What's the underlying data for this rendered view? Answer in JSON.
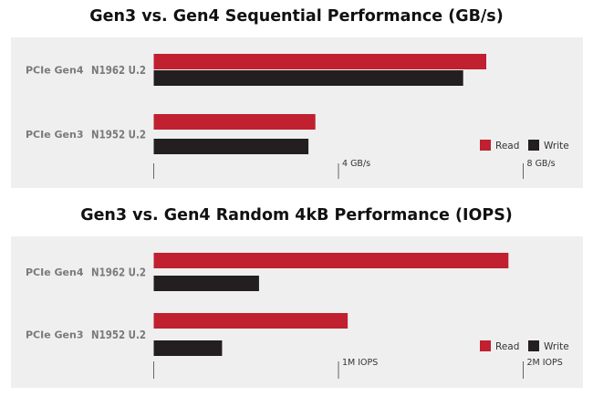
{
  "colors": {
    "read": "#c0202f",
    "write": "#231f20",
    "panel": "#efefef",
    "axis": "#666666"
  },
  "chart_data": [
    {
      "type": "bar",
      "orientation": "horizontal",
      "title": "Gen3 vs. Gen4 Sequential Performance (GB/s)",
      "categories": [
        {
          "gen": "PCIe Gen4",
          "model": "N1962 U.2"
        },
        {
          "gen": "PCIe Gen3",
          "model": "N1952 U.2"
        }
      ],
      "series": [
        {
          "name": "Read",
          "values": [
            7.2,
            3.5
          ]
        },
        {
          "name": "Write",
          "values": [
            6.7,
            3.35
          ]
        }
      ],
      "xlim": [
        0,
        8
      ],
      "ticks": [
        {
          "value": 4,
          "label": "4 GB/s"
        },
        {
          "value": 8,
          "label": "8 GB/s"
        }
      ],
      "legend": "bottom-right",
      "grid": false
    },
    {
      "type": "bar",
      "orientation": "horizontal",
      "title": "Gen3 vs. Gen4 Random 4kB Performance (IOPS)",
      "categories": [
        {
          "gen": "PCIe Gen4",
          "model": "N1962 U.2"
        },
        {
          "gen": "PCIe Gen3",
          "model": "N1952 U.2"
        }
      ],
      "series": [
        {
          "name": "Read",
          "values": [
            1920000,
            1050000
          ]
        },
        {
          "name": "Write",
          "values": [
            570000,
            370000
          ]
        }
      ],
      "xlim": [
        0,
        2000000
      ],
      "ticks": [
        {
          "value": 1000000,
          "label": "1M IOPS"
        },
        {
          "value": 2000000,
          "label": "2M IOPS"
        }
      ],
      "legend": "bottom-right",
      "grid": false
    }
  ]
}
